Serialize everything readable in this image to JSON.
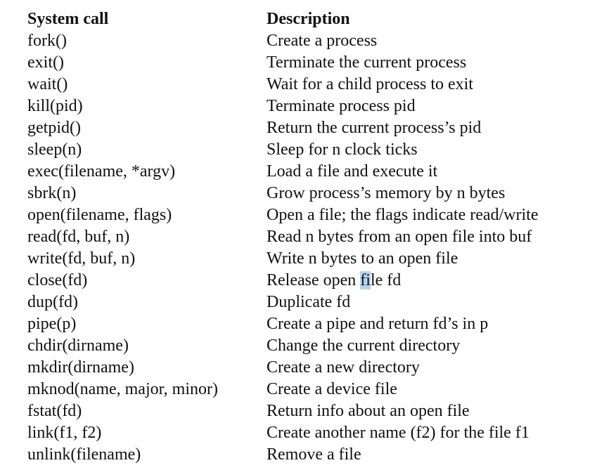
{
  "table": {
    "header": {
      "call": "System call",
      "description": "Description"
    },
    "rows": [
      {
        "call": "fork()",
        "description": "Create a process"
      },
      {
        "call": "exit()",
        "description": "Terminate the current process"
      },
      {
        "call": "wait()",
        "description": "Wait for a child process to exit"
      },
      {
        "call": "kill(pid)",
        "description": "Terminate process pid"
      },
      {
        "call": "getpid()",
        "description": "Return the current process’s pid"
      },
      {
        "call": "sleep(n)",
        "description": "Sleep for n clock ticks"
      },
      {
        "call": "exec(filename, *argv)",
        "description": "Load a file and execute it"
      },
      {
        "call": "sbrk(n)",
        "description": "Grow process’s memory by n bytes"
      },
      {
        "call": "open(filename, flags)",
        "description": "Open a file; the flags indicate read/write"
      },
      {
        "call": "read(fd, buf, n)",
        "description": "Read n bytes from an open file into buf"
      },
      {
        "call": "write(fd, buf, n)",
        "description": "Write n bytes to an open file"
      },
      {
        "call": "close(fd)",
        "description": "Release open file fd",
        "highlight": {
          "before": "Release open ",
          "selected": "fi",
          "after": "le fd"
        }
      },
      {
        "call": "dup(fd)",
        "description": "Duplicate fd"
      },
      {
        "call": "pipe(p)",
        "description": "Create a pipe and return fd’s in p"
      },
      {
        "call": "chdir(dirname)",
        "description": "Change the current directory"
      },
      {
        "call": "mkdir(dirname)",
        "description": "Create a new directory"
      },
      {
        "call": "mknod(name, major, minor)",
        "description": "Create a device file"
      },
      {
        "call": "fstat(fd)",
        "description": "Return info about an open file"
      },
      {
        "call": "link(f1, f2)",
        "description": "Create another name (f2) for the file f1"
      },
      {
        "call": "unlink(filename)",
        "description": "Remove a file"
      }
    ]
  },
  "colors": {
    "text": "#111111",
    "selection": "#b7d3f0",
    "background": "#ffffff"
  }
}
